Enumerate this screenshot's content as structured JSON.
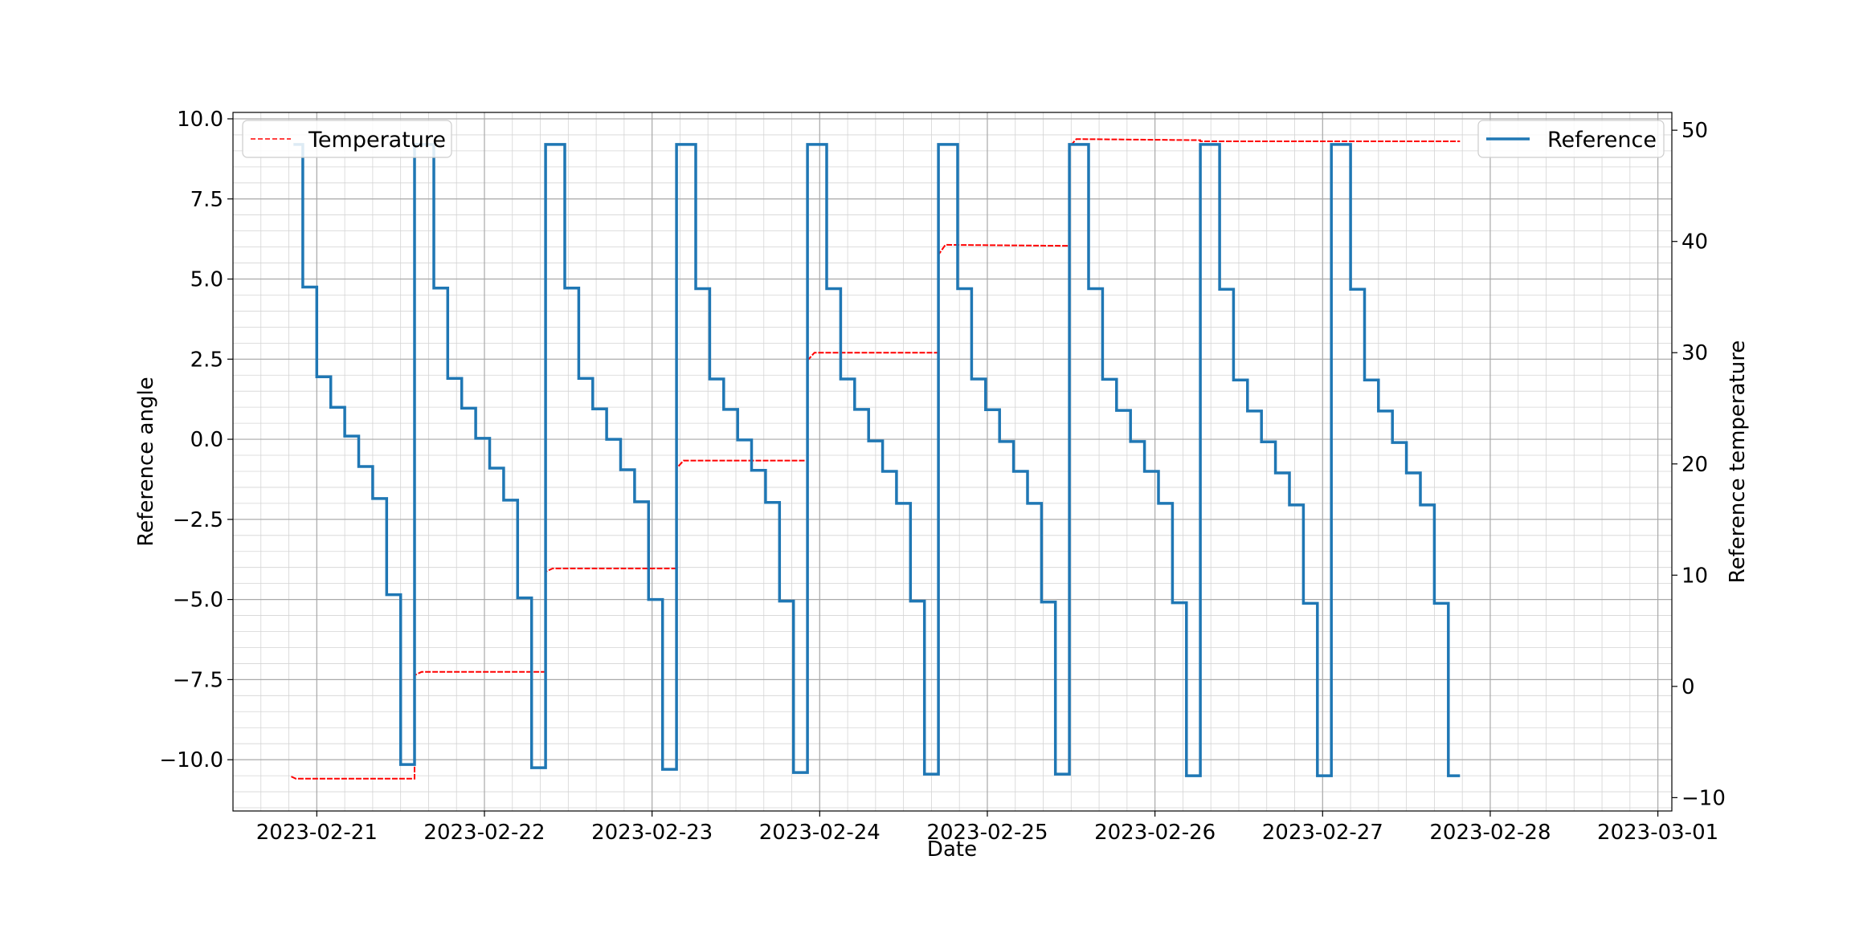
{
  "chart_data": {
    "type": "line",
    "title": "",
    "xlabel": "Date",
    "ylabel": "Reference angle",
    "y2label": "Reference temperature",
    "x_ticks": [
      "2023-02-21",
      "2023-02-22",
      "2023-02-23",
      "2023-02-24",
      "2023-02-25",
      "2023-02-26",
      "2023-02-27",
      "2023-02-28",
      "2023-03-01"
    ],
    "xlim": [
      "2023-02-20 12:00",
      "2023-03-01 02:00"
    ],
    "ylim": [
      -11.6,
      10.2
    ],
    "y_ticks": [
      "10.0",
      "7.5",
      "5.0",
      "2.5",
      "0.0",
      "−2.5",
      "−5.0",
      "−7.5",
      "−10.0"
    ],
    "y2lim": [
      -11.2,
      51.6
    ],
    "y2_ticks": [
      "50",
      "40",
      "30",
      "20",
      "10",
      "0",
      "−10"
    ],
    "grid": true,
    "minor_grid": true,
    "legends": [
      {
        "position": "top-left",
        "entries": [
          "Temperature"
        ]
      },
      {
        "position": "top-right",
        "entries": [
          "Reference"
        ]
      }
    ],
    "series": [
      {
        "name": "Reference",
        "axis": "left",
        "style": "solid",
        "color": "#1f77b4",
        "points": [
          [
            "2023-02-20 20:40",
            9.2
          ],
          [
            "2023-02-20 22:00",
            9.2
          ],
          [
            "2023-02-20 22:00",
            4.75
          ],
          [
            "2023-02-21 00:00",
            4.75
          ],
          [
            "2023-02-21 00:00",
            1.95
          ],
          [
            "2023-02-21 02:00",
            1.95
          ],
          [
            "2023-02-21 02:00",
            1.0
          ],
          [
            "2023-02-21 04:00",
            1.0
          ],
          [
            "2023-02-21 04:00",
            0.1
          ],
          [
            "2023-02-21 06:00",
            0.1
          ],
          [
            "2023-02-21 06:00",
            -0.85
          ],
          [
            "2023-02-21 08:00",
            -0.85
          ],
          [
            "2023-02-21 08:00",
            -1.85
          ],
          [
            "2023-02-21 10:00",
            -1.85
          ],
          [
            "2023-02-21 10:00",
            -4.85
          ],
          [
            "2023-02-21 12:00",
            -4.85
          ],
          [
            "2023-02-21 12:00",
            -10.15
          ],
          [
            "2023-02-21 14:00",
            -10.15
          ],
          [
            "2023-02-21 14:00",
            9.2
          ],
          [
            "2023-02-21 16:45",
            9.2
          ],
          [
            "2023-02-21 16:45",
            4.72
          ],
          [
            "2023-02-21 18:45",
            4.72
          ],
          [
            "2023-02-21 18:45",
            1.9
          ],
          [
            "2023-02-21 20:45",
            1.9
          ],
          [
            "2023-02-21 20:45",
            0.97
          ],
          [
            "2023-02-21 22:45",
            0.97
          ],
          [
            "2023-02-21 22:45",
            0.03
          ],
          [
            "2023-02-22 00:45",
            0.03
          ],
          [
            "2023-02-22 00:45",
            -0.9
          ],
          [
            "2023-02-22 02:45",
            -0.9
          ],
          [
            "2023-02-22 02:45",
            -1.9
          ],
          [
            "2023-02-22 04:45",
            -1.9
          ],
          [
            "2023-02-22 04:45",
            -4.95
          ],
          [
            "2023-02-22 06:45",
            -4.95
          ],
          [
            "2023-02-22 06:45",
            -10.25
          ],
          [
            "2023-02-22 08:45",
            -10.25
          ],
          [
            "2023-02-22 08:45",
            9.2
          ],
          [
            "2023-02-22 11:30",
            9.2
          ],
          [
            "2023-02-22 11:30",
            4.72
          ],
          [
            "2023-02-22 13:30",
            4.72
          ],
          [
            "2023-02-22 13:30",
            1.9
          ],
          [
            "2023-02-22 15:30",
            1.9
          ],
          [
            "2023-02-22 15:30",
            0.95
          ],
          [
            "2023-02-22 17:30",
            0.95
          ],
          [
            "2023-02-22 17:30",
            0.0
          ],
          [
            "2023-02-22 19:30",
            0.0
          ],
          [
            "2023-02-22 19:30",
            -0.95
          ],
          [
            "2023-02-22 21:30",
            -0.95
          ],
          [
            "2023-02-22 21:30",
            -1.95
          ],
          [
            "2023-02-22 23:30",
            -1.95
          ],
          [
            "2023-02-22 23:30",
            -5.0
          ],
          [
            "2023-02-23 01:30",
            -5.0
          ],
          [
            "2023-02-23 01:30",
            -10.3
          ],
          [
            "2023-02-23 03:30",
            -10.3
          ],
          [
            "2023-02-23 03:30",
            9.2
          ],
          [
            "2023-02-23 06:15",
            9.2
          ],
          [
            "2023-02-23 06:15",
            4.7
          ],
          [
            "2023-02-23 08:15",
            4.7
          ],
          [
            "2023-02-23 08:15",
            1.88
          ],
          [
            "2023-02-23 10:15",
            1.88
          ],
          [
            "2023-02-23 10:15",
            0.93
          ],
          [
            "2023-02-23 12:15",
            0.93
          ],
          [
            "2023-02-23 12:15",
            -0.02
          ],
          [
            "2023-02-23 14:15",
            -0.02
          ],
          [
            "2023-02-23 14:15",
            -0.97
          ],
          [
            "2023-02-23 16:15",
            -0.97
          ],
          [
            "2023-02-23 16:15",
            -1.97
          ],
          [
            "2023-02-23 18:15",
            -1.97
          ],
          [
            "2023-02-23 18:15",
            -5.05
          ],
          [
            "2023-02-23 20:15",
            -5.05
          ],
          [
            "2023-02-23 20:15",
            -10.4
          ],
          [
            "2023-02-23 22:15",
            -10.4
          ],
          [
            "2023-02-23 22:15",
            9.2
          ],
          [
            "2023-02-24 01:00",
            9.2
          ],
          [
            "2023-02-24 01:00",
            4.7
          ],
          [
            "2023-02-24 03:00",
            4.7
          ],
          [
            "2023-02-24 03:00",
            1.88
          ],
          [
            "2023-02-24 05:00",
            1.88
          ],
          [
            "2023-02-24 05:00",
            0.93
          ],
          [
            "2023-02-24 07:00",
            0.93
          ],
          [
            "2023-02-24 07:00",
            -0.05
          ],
          [
            "2023-02-24 09:00",
            -0.05
          ],
          [
            "2023-02-24 09:00",
            -1.0
          ],
          [
            "2023-02-24 11:00",
            -1.0
          ],
          [
            "2023-02-24 11:00",
            -2.0
          ],
          [
            "2023-02-24 13:00",
            -2.0
          ],
          [
            "2023-02-24 13:00",
            -5.05
          ],
          [
            "2023-02-24 15:00",
            -5.05
          ],
          [
            "2023-02-24 15:00",
            -10.45
          ],
          [
            "2023-02-24 17:00",
            -10.45
          ],
          [
            "2023-02-24 17:00",
            9.2
          ],
          [
            "2023-02-24 19:45",
            9.2
          ],
          [
            "2023-02-24 19:45",
            4.7
          ],
          [
            "2023-02-24 21:45",
            4.7
          ],
          [
            "2023-02-24 21:45",
            1.88
          ],
          [
            "2023-02-24 23:45",
            1.88
          ],
          [
            "2023-02-24 23:45",
            0.92
          ],
          [
            "2023-02-25 01:45",
            0.92
          ],
          [
            "2023-02-25 01:45",
            -0.07
          ],
          [
            "2023-02-25 03:45",
            -0.07
          ],
          [
            "2023-02-25 03:45",
            -1.0
          ],
          [
            "2023-02-25 05:45",
            -1.0
          ],
          [
            "2023-02-25 05:45",
            -2.0
          ],
          [
            "2023-02-25 07:45",
            -2.0
          ],
          [
            "2023-02-25 07:45",
            -5.08
          ],
          [
            "2023-02-25 09:45",
            -5.08
          ],
          [
            "2023-02-25 09:45",
            -10.45
          ],
          [
            "2023-02-25 11:45",
            -10.45
          ],
          [
            "2023-02-25 11:45",
            9.2
          ],
          [
            "2023-02-25 14:30",
            9.2
          ],
          [
            "2023-02-25 14:30",
            4.7
          ],
          [
            "2023-02-25 16:30",
            4.7
          ],
          [
            "2023-02-25 16:30",
            1.87
          ],
          [
            "2023-02-25 18:30",
            1.87
          ],
          [
            "2023-02-25 18:30",
            0.9
          ],
          [
            "2023-02-25 20:30",
            0.9
          ],
          [
            "2023-02-25 20:30",
            -0.07
          ],
          [
            "2023-02-25 22:30",
            -0.07
          ],
          [
            "2023-02-25 22:30",
            -1.0
          ],
          [
            "2023-02-26 00:30",
            -1.0
          ],
          [
            "2023-02-26 00:30",
            -2.0
          ],
          [
            "2023-02-26 02:30",
            -2.0
          ],
          [
            "2023-02-26 02:30",
            -5.1
          ],
          [
            "2023-02-26 04:30",
            -5.1
          ],
          [
            "2023-02-26 04:30",
            -10.5
          ],
          [
            "2023-02-26 06:30",
            -10.5
          ],
          [
            "2023-02-26 06:30",
            9.2
          ],
          [
            "2023-02-26 09:15",
            9.2
          ],
          [
            "2023-02-26 09:15",
            4.68
          ],
          [
            "2023-02-26 11:15",
            4.68
          ],
          [
            "2023-02-26 11:15",
            1.85
          ],
          [
            "2023-02-26 13:15",
            1.85
          ],
          [
            "2023-02-26 13:15",
            0.88
          ],
          [
            "2023-02-26 15:15",
            0.88
          ],
          [
            "2023-02-26 15:15",
            -0.08
          ],
          [
            "2023-02-26 17:15",
            -0.08
          ],
          [
            "2023-02-26 17:15",
            -1.05
          ],
          [
            "2023-02-26 19:15",
            -1.05
          ],
          [
            "2023-02-26 19:15",
            -2.05
          ],
          [
            "2023-02-26 21:15",
            -2.05
          ],
          [
            "2023-02-26 21:15",
            -5.12
          ],
          [
            "2023-02-26 23:15",
            -5.12
          ],
          [
            "2023-02-26 23:15",
            -10.5
          ],
          [
            "2023-02-27 01:15",
            -10.5
          ],
          [
            "2023-02-27 01:15",
            9.2
          ],
          [
            "2023-02-27 04:00",
            9.2
          ],
          [
            "2023-02-27 04:00",
            4.68
          ],
          [
            "2023-02-27 06:00",
            4.68
          ],
          [
            "2023-02-27 06:00",
            1.85
          ],
          [
            "2023-02-27 08:00",
            1.85
          ],
          [
            "2023-02-27 08:00",
            0.88
          ],
          [
            "2023-02-27 10:00",
            0.88
          ],
          [
            "2023-02-27 10:00",
            -0.1
          ],
          [
            "2023-02-27 12:00",
            -0.1
          ],
          [
            "2023-02-27 12:00",
            -1.05
          ],
          [
            "2023-02-27 14:00",
            -1.05
          ],
          [
            "2023-02-27 14:00",
            -2.05
          ],
          [
            "2023-02-27 16:00",
            -2.05
          ],
          [
            "2023-02-27 16:00",
            -5.12
          ],
          [
            "2023-02-27 18:00",
            -5.12
          ],
          [
            "2023-02-27 18:00",
            -10.5
          ],
          [
            "2023-02-27 19:40",
            -10.5
          ]
        ]
      },
      {
        "name": "Temperature",
        "axis": "right",
        "style": "dashed",
        "color": "#ff0000",
        "points": [
          [
            "2023-02-20 20:20",
            -8.1
          ],
          [
            "2023-02-20 21:00",
            -8.3
          ],
          [
            "2023-02-21 14:00",
            -8.3
          ],
          [
            "2023-02-21 14:00",
            1.0
          ],
          [
            "2023-02-21 15:00",
            1.3
          ],
          [
            "2023-02-22 08:45",
            1.3
          ],
          [
            "2023-02-22 08:45",
            10.3
          ],
          [
            "2023-02-22 09:45",
            10.6
          ],
          [
            "2023-02-23 03:30",
            10.6
          ],
          [
            "2023-02-23 03:30",
            19.6
          ],
          [
            "2023-02-23 04:30",
            20.3
          ],
          [
            "2023-02-23 22:15",
            20.3
          ],
          [
            "2023-02-23 22:15",
            29.3
          ],
          [
            "2023-02-23 23:15",
            30.0
          ],
          [
            "2023-02-24 17:00",
            30.0
          ],
          [
            "2023-02-24 17:00",
            38.8
          ],
          [
            "2023-02-24 18:00",
            39.7
          ],
          [
            "2023-02-25 11:45",
            39.6
          ],
          [
            "2023-02-25 11:45",
            48.5
          ],
          [
            "2023-02-25 12:45",
            49.2
          ],
          [
            "2023-02-26 06:30",
            49.1
          ],
          [
            "2023-02-26 06:30",
            49.0
          ],
          [
            "2023-02-27 19:40",
            49.0
          ]
        ]
      }
    ]
  }
}
